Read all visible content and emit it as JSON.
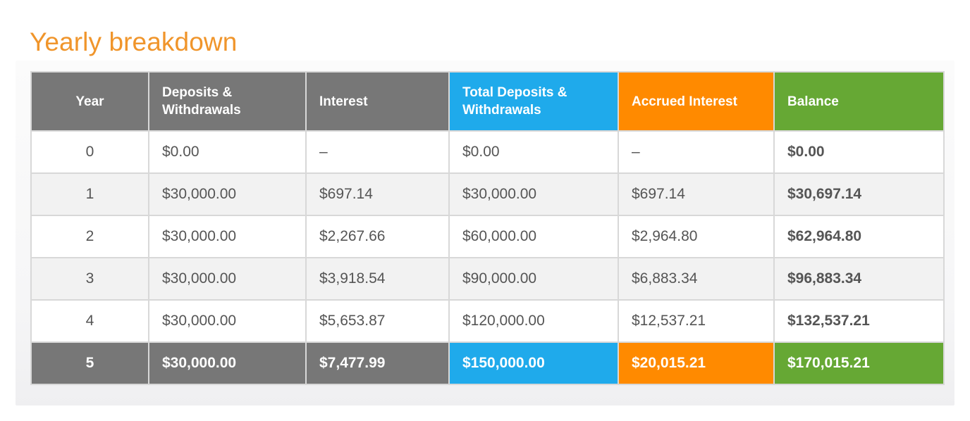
{
  "title": "Yearly breakdown",
  "colors": {
    "title": "#f0952b",
    "gray_header": "#777777",
    "blue_header": "#1faaeb",
    "orange_header": "#ff8a00",
    "green_header": "#66a834"
  },
  "table": {
    "headers": [
      {
        "label": "Year",
        "color": "gray"
      },
      {
        "label": "Deposits & Withdrawals",
        "color": "gray"
      },
      {
        "label": "Interest",
        "color": "gray"
      },
      {
        "label": "Total Deposits & Withdrawals",
        "color": "blue"
      },
      {
        "label": "Accrued Interest",
        "color": "orange"
      },
      {
        "label": "Balance",
        "color": "green"
      }
    ],
    "rows": [
      {
        "year": "0",
        "deposits": "$0.00",
        "interest": "–",
        "total_deposits": "$0.00",
        "accrued_interest": "–",
        "balance": "$0.00"
      },
      {
        "year": "1",
        "deposits": "$30,000.00",
        "interest": "$697.14",
        "total_deposits": "$30,000.00",
        "accrued_interest": "$697.14",
        "balance": "$30,697.14"
      },
      {
        "year": "2",
        "deposits": "$30,000.00",
        "interest": "$2,267.66",
        "total_deposits": "$60,000.00",
        "accrued_interest": "$2,964.80",
        "balance": "$62,964.80"
      },
      {
        "year": "3",
        "deposits": "$30,000.00",
        "interest": "$3,918.54",
        "total_deposits": "$90,000.00",
        "accrued_interest": "$6,883.34",
        "balance": "$96,883.34"
      },
      {
        "year": "4",
        "deposits": "$30,000.00",
        "interest": "$5,653.87",
        "total_deposits": "$120,000.00",
        "accrued_interest": "$12,537.21",
        "balance": "$132,537.21"
      }
    ],
    "total_row": {
      "year": "5",
      "deposits": "$30,000.00",
      "interest": "$7,477.99",
      "total_deposits": "$150,000.00",
      "accrued_interest": "$20,015.21",
      "balance": "$170,015.21"
    }
  }
}
